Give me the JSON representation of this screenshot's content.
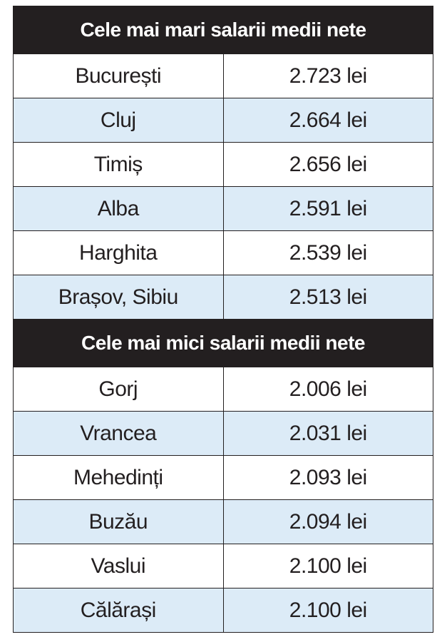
{
  "sections": [
    {
      "title": "Cele mai mari salarii medii nete",
      "rows": [
        [
          "București",
          "2.723 lei"
        ],
        [
          "Cluj",
          "2.664 lei"
        ],
        [
          "Timiș",
          "2.656 lei"
        ],
        [
          "Alba",
          "2.591 lei"
        ],
        [
          "Harghita",
          "2.539 lei"
        ],
        [
          "Brașov, Sibiu",
          "2.513 lei"
        ]
      ]
    },
    {
      "title": "Cele mai mici salarii medii nete",
      "rows": [
        [
          "Gorj",
          "2.006 lei"
        ],
        [
          "Vrancea",
          "2.031 lei"
        ],
        [
          "Mehedinți",
          "2.093 lei"
        ],
        [
          "Buzău",
          "2.094 lei"
        ],
        [
          "Vaslui",
          "2.100 lei"
        ],
        [
          "Călărași",
          "2.100 lei"
        ]
      ]
    }
  ]
}
